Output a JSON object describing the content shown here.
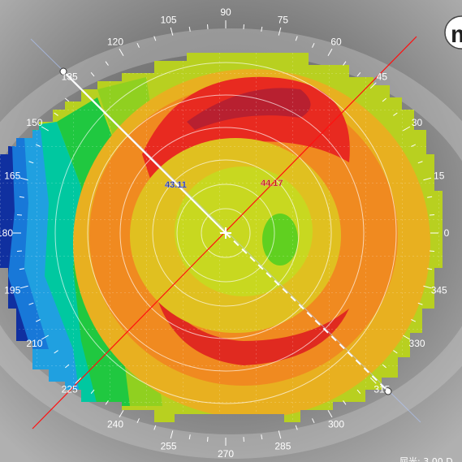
{
  "degree_labels": [
    "0",
    "15",
    "30",
    "45",
    "60",
    "75",
    "90",
    "105",
    "120",
    "135",
    "150",
    "165",
    "180",
    "195",
    "210",
    "225",
    "240",
    "255",
    "270",
    "285",
    "300",
    "315",
    "330",
    "345"
  ],
  "readings": {
    "flat_k": "43.11",
    "steep_k": "44.17"
  },
  "axes": {
    "flat_axis_deg": 135,
    "steep_axis_deg": 45
  },
  "corner_logo_text": "m",
  "bottom_right_text": "屈光: 3.00 D",
  "colors": {
    "flat_k": "#24308a",
    "steep_k": "#b01010",
    "steep_axis": "#ff1010",
    "flat_axis": "#ffffff"
  }
}
